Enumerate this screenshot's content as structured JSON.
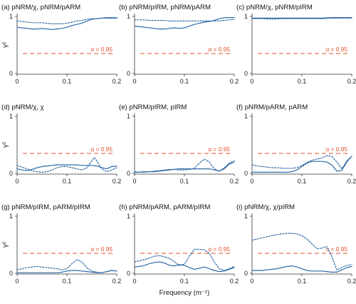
{
  "colors": {
    "series": "#2e6aa6",
    "significance": "#e0522a",
    "axis": "#333333"
  },
  "chart_data": [
    {
      "type": "line",
      "title": "(a) pNRM/χ, pNRM/pARM",
      "xlabel": "",
      "ylabel": "γ²",
      "xlim": [
        0,
        0.2
      ],
      "ylim": [
        0,
        1
      ],
      "xticks": [
        "0",
        "0.1",
        "0.2"
      ],
      "yticks": [
        "0",
        "1"
      ],
      "significance": {
        "value": 0.35,
        "label": "α = 0.95"
      },
      "series": [
        {
          "style": "solid",
          "x": [
            0,
            0.01,
            0.02,
            0.03,
            0.04,
            0.05,
            0.06,
            0.07,
            0.08,
            0.09,
            0.1,
            0.11,
            0.12,
            0.13,
            0.14,
            0.15,
            0.16,
            0.17,
            0.18,
            0.19,
            0.2
          ],
          "y": [
            0.81,
            0.8,
            0.79,
            0.78,
            0.78,
            0.79,
            0.78,
            0.77,
            0.78,
            0.79,
            0.81,
            0.84,
            0.86,
            0.88,
            0.92,
            0.95,
            0.96,
            0.97,
            0.97,
            0.97,
            0.97
          ]
        },
        {
          "style": "dotted",
          "x": [
            0,
            0.01,
            0.02,
            0.03,
            0.04,
            0.05,
            0.06,
            0.07,
            0.08,
            0.09,
            0.1,
            0.11,
            0.12,
            0.13,
            0.14,
            0.15,
            0.16,
            0.17,
            0.18,
            0.19,
            0.2
          ],
          "y": [
            0.92,
            0.91,
            0.9,
            0.89,
            0.89,
            0.89,
            0.88,
            0.87,
            0.87,
            0.87,
            0.88,
            0.9,
            0.92,
            0.93,
            0.95,
            0.96,
            0.96,
            0.97,
            0.98,
            0.98,
            0.98
          ]
        }
      ]
    },
    {
      "type": "line",
      "title": "(b) pNRM/pIRM, pNRM/pARM",
      "xlabel": "",
      "ylabel": "",
      "xlim": [
        0,
        0.2
      ],
      "ylim": [
        0,
        1
      ],
      "xticks": [
        "0",
        "0.1",
        "0.2"
      ],
      "yticks": [
        "0",
        "1"
      ],
      "significance": {
        "value": 0.35,
        "label": "α = 0.95"
      },
      "series": [
        {
          "style": "solid",
          "x": [
            0,
            0.01,
            0.02,
            0.03,
            0.04,
            0.05,
            0.06,
            0.07,
            0.08,
            0.09,
            0.1,
            0.11,
            0.12,
            0.13,
            0.14,
            0.15,
            0.16,
            0.17,
            0.18,
            0.19,
            0.2
          ],
          "y": [
            0.83,
            0.82,
            0.81,
            0.8,
            0.79,
            0.78,
            0.78,
            0.79,
            0.8,
            0.79,
            0.8,
            0.83,
            0.86,
            0.88,
            0.9,
            0.91,
            0.93,
            0.96,
            0.98,
            0.98,
            0.98
          ]
        },
        {
          "style": "dotted",
          "x": [
            0,
            0.01,
            0.02,
            0.03,
            0.04,
            0.05,
            0.06,
            0.07,
            0.08,
            0.09,
            0.1,
            0.11,
            0.12,
            0.13,
            0.14,
            0.15,
            0.16,
            0.17,
            0.18,
            0.19,
            0.2
          ],
          "y": [
            0.94,
            0.94,
            0.94,
            0.93,
            0.93,
            0.93,
            0.93,
            0.92,
            0.92,
            0.92,
            0.92,
            0.92,
            0.92,
            0.92,
            0.92,
            0.92,
            0.92,
            0.92,
            0.93,
            0.94,
            0.95
          ]
        }
      ]
    },
    {
      "type": "line",
      "title": "(c) pNRM/χ, pNRM/pIRM",
      "xlabel": "",
      "ylabel": "",
      "xlim": [
        0,
        0.2
      ],
      "ylim": [
        0,
        1
      ],
      "xticks": [
        "0",
        "0.1",
        "0.2"
      ],
      "yticks": [
        "0",
        "1"
      ],
      "significance": {
        "value": 0.35,
        "label": "α = 0.95"
      },
      "series": [
        {
          "style": "solid",
          "x": [
            0,
            0.02,
            0.04,
            0.06,
            0.08,
            0.1,
            0.12,
            0.14,
            0.16,
            0.18,
            0.2
          ],
          "y": [
            0.97,
            0.97,
            0.97,
            0.97,
            0.97,
            0.97,
            0.97,
            0.97,
            0.98,
            0.98,
            0.98
          ]
        },
        {
          "style": "dotted",
          "x": [
            0,
            0.02,
            0.04,
            0.06,
            0.08,
            0.1,
            0.12,
            0.14,
            0.16,
            0.18,
            0.2
          ],
          "y": [
            0.96,
            0.96,
            0.95,
            0.96,
            0.96,
            0.96,
            0.96,
            0.96,
            0.97,
            0.97,
            0.97
          ]
        }
      ]
    },
    {
      "type": "line",
      "title": "(d) pNRM/χ, χ",
      "xlabel": "",
      "ylabel": "γ²",
      "xlim": [
        0,
        0.2
      ],
      "ylim": [
        0,
        1
      ],
      "xticks": [
        "0",
        "0.1",
        "0.2"
      ],
      "yticks": [
        "0",
        "1"
      ],
      "significance": {
        "value": 0.35,
        "label": "α = 0.95"
      },
      "series": [
        {
          "style": "solid",
          "x": [
            0,
            0.01,
            0.02,
            0.03,
            0.04,
            0.05,
            0.06,
            0.07,
            0.08,
            0.09,
            0.1,
            0.11,
            0.12,
            0.13,
            0.14,
            0.15,
            0.16,
            0.17,
            0.18,
            0.19,
            0.2
          ],
          "y": [
            0.08,
            0.06,
            0.05,
            0.07,
            0.1,
            0.12,
            0.13,
            0.14,
            0.15,
            0.15,
            0.15,
            0.15,
            0.15,
            0.14,
            0.14,
            0.14,
            0.13,
            0.1,
            0.08,
            0.12,
            0.13
          ]
        },
        {
          "style": "dotted",
          "x": [
            0,
            0.01,
            0.02,
            0.03,
            0.04,
            0.05,
            0.06,
            0.07,
            0.08,
            0.09,
            0.1,
            0.11,
            0.12,
            0.13,
            0.14,
            0.15,
            0.155,
            0.16,
            0.17,
            0.18,
            0.19,
            0.2
          ],
          "y": [
            0.14,
            0.11,
            0.08,
            0.05,
            0.03,
            0.02,
            0.03,
            0.06,
            0.1,
            0.12,
            0.12,
            0.1,
            0.08,
            0.06,
            0.1,
            0.22,
            0.28,
            0.22,
            0.08,
            0.03,
            0.06,
            0.1
          ]
        }
      ]
    },
    {
      "type": "line",
      "title": "(e) pNRM/pIRM, pIRM",
      "xlabel": "",
      "ylabel": "",
      "xlim": [
        0,
        0.2
      ],
      "ylim": [
        0,
        1
      ],
      "xticks": [
        "0",
        "0.1",
        "0.2"
      ],
      "yticks": [
        "0",
        "1"
      ],
      "significance": {
        "value": 0.35,
        "label": "α = 0.95"
      },
      "series": [
        {
          "style": "solid",
          "x": [
            0,
            0.01,
            0.02,
            0.03,
            0.04,
            0.05,
            0.06,
            0.07,
            0.08,
            0.09,
            0.1,
            0.11,
            0.12,
            0.13,
            0.14,
            0.15,
            0.16,
            0.17,
            0.18,
            0.19,
            0.2
          ],
          "y": [
            0.02,
            0.02,
            0.03,
            0.03,
            0.03,
            0.04,
            0.05,
            0.06,
            0.07,
            0.08,
            0.08,
            0.08,
            0.08,
            0.08,
            0.08,
            0.08,
            0.06,
            0.04,
            0.08,
            0.16,
            0.2
          ]
        },
        {
          "style": "dotted",
          "x": [
            0,
            0.01,
            0.02,
            0.03,
            0.04,
            0.05,
            0.06,
            0.07,
            0.08,
            0.09,
            0.1,
            0.11,
            0.12,
            0.13,
            0.14,
            0.15,
            0.16,
            0.17,
            0.18,
            0.19,
            0.2
          ],
          "y": [
            0.03,
            0.02,
            0.02,
            0.03,
            0.04,
            0.05,
            0.06,
            0.07,
            0.07,
            0.06,
            0.06,
            0.07,
            0.09,
            0.18,
            0.25,
            0.2,
            0.08,
            0.04,
            0.1,
            0.18,
            0.22
          ]
        }
      ]
    },
    {
      "type": "line",
      "title": "(f) pNRM/pARM, pARM",
      "xlabel": "",
      "ylabel": "",
      "xlim": [
        0,
        0.2
      ],
      "ylim": [
        0,
        1
      ],
      "xticks": [
        "0",
        "0.1",
        "0.2"
      ],
      "yticks": [
        "0",
        "1"
      ],
      "significance": {
        "value": 0.35,
        "label": "α = 0.95"
      },
      "series": [
        {
          "style": "solid",
          "x": [
            0,
            0.01,
            0.02,
            0.03,
            0.04,
            0.05,
            0.06,
            0.07,
            0.08,
            0.09,
            0.1,
            0.11,
            0.12,
            0.13,
            0.14,
            0.15,
            0.16,
            0.17,
            0.18,
            0.19,
            0.2
          ],
          "y": [
            0.02,
            0.02,
            0.02,
            0.02,
            0.02,
            0.02,
            0.02,
            0.02,
            0.03,
            0.06,
            0.12,
            0.18,
            0.21,
            0.21,
            0.21,
            0.2,
            0.15,
            0.04,
            0.05,
            0.2,
            0.3
          ]
        },
        {
          "style": "dotted",
          "x": [
            0,
            0.01,
            0.02,
            0.03,
            0.04,
            0.05,
            0.06,
            0.07,
            0.08,
            0.09,
            0.1,
            0.11,
            0.12,
            0.13,
            0.14,
            0.15,
            0.16,
            0.17,
            0.18,
            0.19,
            0.2
          ],
          "y": [
            0.15,
            0.13,
            0.12,
            0.11,
            0.1,
            0.1,
            0.09,
            0.09,
            0.09,
            0.1,
            0.14,
            0.19,
            0.23,
            0.25,
            0.27,
            0.31,
            0.3,
            0.2,
            0.08,
            0.22,
            0.3
          ]
        }
      ]
    },
    {
      "type": "line",
      "title": "(g) pNRM/pIRM, pARM/pIRM",
      "xlabel": "",
      "ylabel": "γ²",
      "xlim": [
        0,
        0.2
      ],
      "ylim": [
        0,
        1
      ],
      "xticks": [
        "0",
        "0.1",
        "0.2"
      ],
      "yticks": [
        "0",
        "1"
      ],
      "significance": {
        "value": 0.35,
        "label": "α = 0.95"
      },
      "series": [
        {
          "style": "solid",
          "x": [
            0,
            0.01,
            0.02,
            0.03,
            0.04,
            0.05,
            0.06,
            0.07,
            0.08,
            0.09,
            0.1,
            0.11,
            0.12,
            0.13,
            0.14,
            0.15,
            0.16,
            0.17,
            0.18,
            0.19,
            0.2
          ],
          "y": [
            0.01,
            0.01,
            0.01,
            0.01,
            0.01,
            0.01,
            0.01,
            0.01,
            0.01,
            0.02,
            0.04,
            0.05,
            0.05,
            0.04,
            0.03,
            0.02,
            0.01,
            0.01,
            0.03,
            0.05,
            0.04
          ]
        },
        {
          "style": "dotted",
          "x": [
            0,
            0.01,
            0.02,
            0.03,
            0.04,
            0.05,
            0.06,
            0.07,
            0.08,
            0.09,
            0.1,
            0.11,
            0.12,
            0.13,
            0.14,
            0.15,
            0.16,
            0.17,
            0.18,
            0.19,
            0.2
          ],
          "y": [
            0.06,
            0.08,
            0.1,
            0.11,
            0.12,
            0.11,
            0.1,
            0.09,
            0.08,
            0.06,
            0.08,
            0.17,
            0.24,
            0.2,
            0.1,
            0.04,
            0.02,
            0.01,
            0.03,
            0.05,
            0.04
          ]
        }
      ]
    },
    {
      "type": "line",
      "title": "(h) pNRM/pARM, pARM/pIRM",
      "xlabel": "Frequency (m⁻¹)",
      "ylabel": "",
      "xlim": [
        0,
        0.2
      ],
      "ylim": [
        0,
        1
      ],
      "xticks": [
        "0",
        "0.1",
        "0.2"
      ],
      "yticks": [
        "0",
        "1"
      ],
      "significance": {
        "value": 0.35,
        "label": "α = 0.95"
      },
      "series": [
        {
          "style": "solid",
          "x": [
            0,
            0.01,
            0.02,
            0.03,
            0.04,
            0.05,
            0.06,
            0.07,
            0.08,
            0.09,
            0.1,
            0.11,
            0.12,
            0.13,
            0.14,
            0.15,
            0.16,
            0.17,
            0.18,
            0.19,
            0.2
          ],
          "y": [
            0.11,
            0.12,
            0.14,
            0.17,
            0.19,
            0.2,
            0.18,
            0.14,
            0.13,
            0.15,
            0.14,
            0.1,
            0.07,
            0.09,
            0.11,
            0.08,
            0.05,
            0.03,
            0.04,
            0.07,
            0.1
          ]
        },
        {
          "style": "dotted",
          "x": [
            0,
            0.01,
            0.02,
            0.03,
            0.04,
            0.05,
            0.06,
            0.07,
            0.08,
            0.09,
            0.1,
            0.11,
            0.12,
            0.13,
            0.14,
            0.15,
            0.16,
            0.17,
            0.18,
            0.19,
            0.2
          ],
          "y": [
            0.2,
            0.22,
            0.24,
            0.27,
            0.3,
            0.31,
            0.29,
            0.26,
            0.2,
            0.14,
            0.16,
            0.3,
            0.42,
            0.42,
            0.41,
            0.35,
            0.2,
            0.08,
            0.05,
            0.08,
            0.12
          ]
        }
      ]
    },
    {
      "type": "line",
      "title": "(i) pNRM/χ, χ/pIRM",
      "xlabel": "",
      "ylabel": "",
      "xlim": [
        0,
        0.2
      ],
      "ylim": [
        0,
        1
      ],
      "xticks": [
        "0",
        "0.1",
        "0.2"
      ],
      "yticks": [
        "0",
        "1"
      ],
      "significance": {
        "value": 0.35,
        "label": "α = 0.95"
      },
      "series": [
        {
          "style": "solid",
          "x": [
            0,
            0.01,
            0.02,
            0.03,
            0.04,
            0.05,
            0.06,
            0.07,
            0.08,
            0.09,
            0.1,
            0.11,
            0.12,
            0.13,
            0.14,
            0.15,
            0.16,
            0.17,
            0.18,
            0.19,
            0.2
          ],
          "y": [
            0.05,
            0.05,
            0.05,
            0.06,
            0.07,
            0.08,
            0.1,
            0.12,
            0.13,
            0.11,
            0.08,
            0.05,
            0.04,
            0.04,
            0.04,
            0.03,
            0.02,
            0.02,
            0.06,
            0.1,
            0.12
          ]
        },
        {
          "style": "dotted",
          "x": [
            0,
            0.01,
            0.02,
            0.03,
            0.04,
            0.05,
            0.06,
            0.07,
            0.08,
            0.09,
            0.1,
            0.11,
            0.12,
            0.13,
            0.14,
            0.15,
            0.16,
            0.17,
            0.18,
            0.19,
            0.2
          ],
          "y": [
            0.58,
            0.6,
            0.62,
            0.64,
            0.66,
            0.68,
            0.69,
            0.7,
            0.7,
            0.69,
            0.66,
            0.6,
            0.52,
            0.43,
            0.44,
            0.47,
            0.3,
            0.06,
            0.1,
            0.14,
            0.15
          ]
        }
      ]
    }
  ]
}
